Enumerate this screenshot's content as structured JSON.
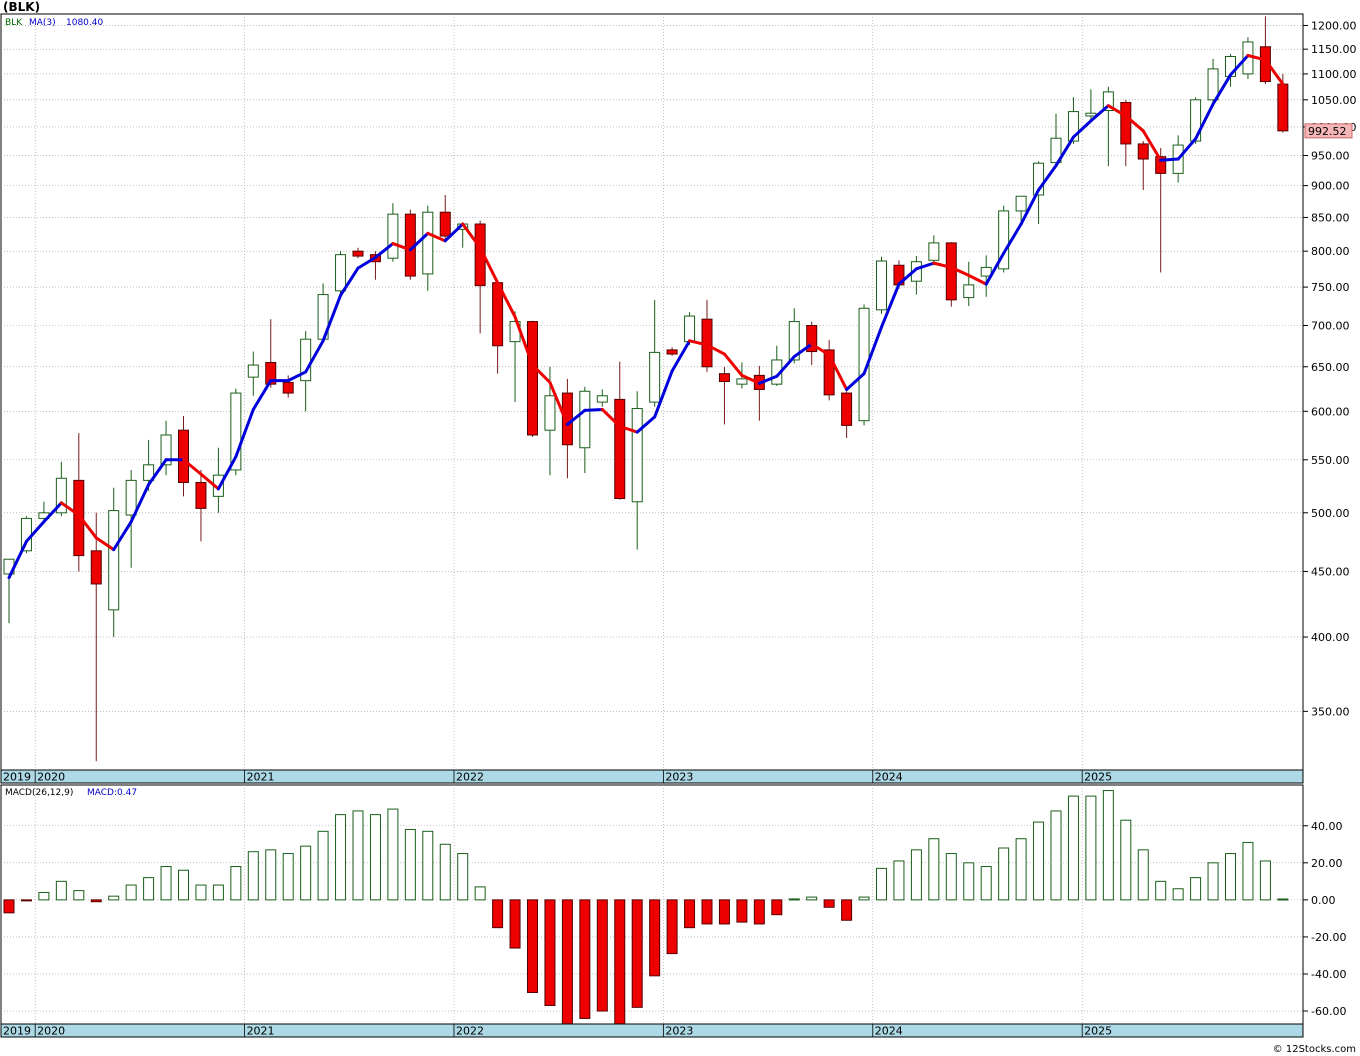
{
  "symbol_label": "(BLK)",
  "credit": "© 12Stocks.com",
  "chart_data": [
    {
      "type": "candlestick",
      "legend": {
        "symbol": "BLK",
        "ma_label": "MA(3)",
        "ma_value": "1080.40"
      },
      "last_price_label": "992.52",
      "y_scale": "log",
      "ylim": [
        315,
        1225
      ],
      "y_ticks": [
        350,
        400,
        450,
        500,
        550,
        600,
        650,
        700,
        750,
        800,
        850,
        900,
        950,
        1000,
        1050,
        1100,
        1150,
        1200
      ],
      "y_tick_labels": [
        "350.00",
        "400.00",
        "450.00",
        "500.00",
        "550.00",
        "600.00",
        "650.00",
        "700.00",
        "750.00",
        "800.00",
        "850.00",
        "900.00",
        "950.00",
        "1000.00",
        "1050.00",
        "1100.00",
        "1150.00",
        "1200.00"
      ],
      "x_labels": [
        "2019",
        "2020",
        "2021",
        "2022",
        "2023",
        "2024",
        "2025"
      ],
      "x_label_months": [
        -1,
        0,
        12,
        24,
        36,
        48,
        60
      ],
      "grid": true,
      "candles": [
        {
          "m": -2,
          "o": 448,
          "h": 460,
          "l": 410,
          "c": 460
        },
        {
          "m": -1,
          "o": 467,
          "h": 497,
          "l": 465,
          "c": 495
        },
        {
          "m": 0,
          "o": 495,
          "h": 510,
          "l": 490,
          "c": 500
        },
        {
          "m": 1,
          "o": 500,
          "h": 548,
          "l": 497,
          "c": 532
        },
        {
          "m": 2,
          "o": 530,
          "h": 577,
          "l": 450,
          "c": 463
        },
        {
          "m": 3,
          "o": 467,
          "h": 500,
          "l": 320,
          "c": 440
        },
        {
          "m": 4,
          "o": 420,
          "h": 523,
          "l": 400,
          "c": 502
        },
        {
          "m": 5,
          "o": 498,
          "h": 540,
          "l": 453,
          "c": 530
        },
        {
          "m": 6,
          "o": 530,
          "h": 570,
          "l": 520,
          "c": 545
        },
        {
          "m": 7,
          "o": 545,
          "h": 590,
          "l": 535,
          "c": 575
        },
        {
          "m": 8,
          "o": 580,
          "h": 595,
          "l": 515,
          "c": 528
        },
        {
          "m": 9,
          "o": 528,
          "h": 540,
          "l": 475,
          "c": 504
        },
        {
          "m": 10,
          "o": 515,
          "h": 562,
          "l": 500,
          "c": 535
        },
        {
          "m": 11,
          "o": 540,
          "h": 625,
          "l": 535,
          "c": 620
        },
        {
          "m": 12,
          "o": 638,
          "h": 668,
          "l": 617,
          "c": 652
        },
        {
          "m": 13,
          "o": 655,
          "h": 708,
          "l": 626,
          "c": 630
        },
        {
          "m": 14,
          "o": 632,
          "h": 640,
          "l": 615,
          "c": 620
        },
        {
          "m": 15,
          "o": 634,
          "h": 693,
          "l": 600,
          "c": 683
        },
        {
          "m": 16,
          "o": 683,
          "h": 755,
          "l": 680,
          "c": 740
        },
        {
          "m": 17,
          "o": 745,
          "h": 800,
          "l": 735,
          "c": 795
        },
        {
          "m": 18,
          "o": 800,
          "h": 805,
          "l": 790,
          "c": 793
        },
        {
          "m": 19,
          "o": 795,
          "h": 800,
          "l": 760,
          "c": 785
        },
        {
          "m": 20,
          "o": 790,
          "h": 872,
          "l": 785,
          "c": 855
        },
        {
          "m": 21,
          "o": 855,
          "h": 862,
          "l": 760,
          "c": 765
        },
        {
          "m": 22,
          "o": 768,
          "h": 868,
          "l": 745,
          "c": 858
        },
        {
          "m": 23,
          "o": 858,
          "h": 885,
          "l": 815,
          "c": 822
        },
        {
          "m": 24,
          "o": 832,
          "h": 840,
          "l": 805,
          "c": 840
        },
        {
          "m": 25,
          "o": 840,
          "h": 845,
          "l": 690,
          "c": 752
        },
        {
          "m": 26,
          "o": 756,
          "h": 760,
          "l": 642,
          "c": 675
        },
        {
          "m": 27,
          "o": 680,
          "h": 718,
          "l": 610,
          "c": 705
        },
        {
          "m": 28,
          "o": 705,
          "h": 706,
          "l": 573,
          "c": 575
        },
        {
          "m": 29,
          "o": 580,
          "h": 650,
          "l": 535,
          "c": 617
        },
        {
          "m": 30,
          "o": 620,
          "h": 636,
          "l": 532,
          "c": 565
        },
        {
          "m": 31,
          "o": 562,
          "h": 627,
          "l": 537,
          "c": 622
        },
        {
          "m": 32,
          "o": 610,
          "h": 624,
          "l": 605,
          "c": 617
        },
        {
          "m": 33,
          "o": 613,
          "h": 656,
          "l": 512,
          "c": 513
        },
        {
          "m": 34,
          "o": 510,
          "h": 622,
          "l": 468,
          "c": 603
        },
        {
          "m": 35,
          "o": 610,
          "h": 733,
          "l": 605,
          "c": 667
        },
        {
          "m": 36,
          "o": 670,
          "h": 673,
          "l": 663,
          "c": 665
        },
        {
          "m": 37,
          "o": 680,
          "h": 717,
          "l": 676,
          "c": 712
        },
        {
          "m": 38,
          "o": 708,
          "h": 733,
          "l": 644,
          "c": 650
        },
        {
          "m": 39,
          "o": 642,
          "h": 650,
          "l": 586,
          "c": 633
        },
        {
          "m": 40,
          "o": 630,
          "h": 655,
          "l": 625,
          "c": 636
        },
        {
          "m": 41,
          "o": 640,
          "h": 651,
          "l": 590,
          "c": 624
        },
        {
          "m": 42,
          "o": 630,
          "h": 675,
          "l": 628,
          "c": 658
        },
        {
          "m": 43,
          "o": 658,
          "h": 722,
          "l": 654,
          "c": 705
        },
        {
          "m": 44,
          "o": 700,
          "h": 705,
          "l": 652,
          "c": 668
        },
        {
          "m": 45,
          "o": 670,
          "h": 682,
          "l": 612,
          "c": 618
        },
        {
          "m": 46,
          "o": 620,
          "h": 622,
          "l": 572,
          "c": 585
        },
        {
          "m": 47,
          "o": 590,
          "h": 727,
          "l": 585,
          "c": 722
        },
        {
          "m": 48,
          "o": 720,
          "h": 792,
          "l": 715,
          "c": 786
        },
        {
          "m": 49,
          "o": 780,
          "h": 787,
          "l": 748,
          "c": 753
        },
        {
          "m": 50,
          "o": 758,
          "h": 793,
          "l": 740,
          "c": 785
        },
        {
          "m": 51,
          "o": 787,
          "h": 823,
          "l": 780,
          "c": 812
        },
        {
          "m": 52,
          "o": 812,
          "h": 813,
          "l": 724,
          "c": 733
        },
        {
          "m": 53,
          "o": 736,
          "h": 785,
          "l": 725,
          "c": 753
        },
        {
          "m": 54,
          "o": 765,
          "h": 794,
          "l": 737,
          "c": 777
        },
        {
          "m": 55,
          "o": 775,
          "h": 868,
          "l": 770,
          "c": 860
        },
        {
          "m": 56,
          "o": 860,
          "h": 880,
          "l": 844,
          "c": 883
        },
        {
          "m": 57,
          "o": 885,
          "h": 940,
          "l": 840,
          "c": 937
        },
        {
          "m": 58,
          "o": 938,
          "h": 1024,
          "l": 935,
          "c": 980
        },
        {
          "m": 59,
          "o": 975,
          "h": 1055,
          "l": 970,
          "c": 1028
        },
        {
          "m": 60,
          "o": 1020,
          "h": 1070,
          "l": 1010,
          "c": 1025
        },
        {
          "m": 61,
          "o": 1030,
          "h": 1075,
          "l": 932,
          "c": 1065
        },
        {
          "m": 62,
          "o": 1045,
          "h": 1050,
          "l": 932,
          "c": 970
        },
        {
          "m": 63,
          "o": 970,
          "h": 975,
          "l": 893,
          "c": 944
        },
        {
          "m": 64,
          "o": 948,
          "h": 963,
          "l": 770,
          "c": 920
        },
        {
          "m": 65,
          "o": 920,
          "h": 985,
          "l": 905,
          "c": 968
        },
        {
          "m": 66,
          "o": 975,
          "h": 1055,
          "l": 970,
          "c": 1050
        },
        {
          "m": 67,
          "o": 1050,
          "h": 1130,
          "l": 1040,
          "c": 1110
        },
        {
          "m": 68,
          "o": 1095,
          "h": 1140,
          "l": 1075,
          "c": 1135
        },
        {
          "m": 69,
          "o": 1100,
          "h": 1175,
          "l": 1090,
          "c": 1165
        },
        {
          "m": 70,
          "o": 1155,
          "h": 1220,
          "l": 1080,
          "c": 1085
        },
        {
          "m": 71,
          "o": 1080,
          "h": 1100,
          "l": 990,
          "c": 993
        }
      ],
      "ma3": [
        {
          "m": -2,
          "v": 445
        },
        {
          "m": -1,
          "v": 475
        },
        {
          "m": 0,
          "v": 492
        },
        {
          "m": 1,
          "v": 509
        },
        {
          "m": 2,
          "v": 498
        },
        {
          "m": 3,
          "v": 478
        },
        {
          "m": 4,
          "v": 468
        },
        {
          "m": 5,
          "v": 492
        },
        {
          "m": 6,
          "v": 526
        },
        {
          "m": 7,
          "v": 550
        },
        {
          "m": 8,
          "v": 550
        },
        {
          "m": 9,
          "v": 536
        },
        {
          "m": 10,
          "v": 522
        },
        {
          "m": 11,
          "v": 553
        },
        {
          "m": 12,
          "v": 602
        },
        {
          "m": 13,
          "v": 634
        },
        {
          "m": 14,
          "v": 634
        },
        {
          "m": 15,
          "v": 644
        },
        {
          "m": 16,
          "v": 681
        },
        {
          "m": 17,
          "v": 739
        },
        {
          "m": 18,
          "v": 776
        },
        {
          "m": 19,
          "v": 791
        },
        {
          "m": 20,
          "v": 811
        },
        {
          "m": 21,
          "v": 802
        },
        {
          "m": 22,
          "v": 826
        },
        {
          "m": 23,
          "v": 815
        },
        {
          "m": 24,
          "v": 840
        },
        {
          "m": 25,
          "v": 805
        },
        {
          "m": 26,
          "v": 756
        },
        {
          "m": 27,
          "v": 711
        },
        {
          "m": 28,
          "v": 652
        },
        {
          "m": 29,
          "v": 632
        },
        {
          "m": 30,
          "v": 586
        },
        {
          "m": 31,
          "v": 601
        },
        {
          "m": 32,
          "v": 602
        },
        {
          "m": 33,
          "v": 584
        },
        {
          "m": 34,
          "v": 578
        },
        {
          "m": 35,
          "v": 594
        },
        {
          "m": 36,
          "v": 645
        },
        {
          "m": 37,
          "v": 681
        },
        {
          "m": 38,
          "v": 676
        },
        {
          "m": 39,
          "v": 665
        },
        {
          "m": 40,
          "v": 640
        },
        {
          "m": 41,
          "v": 631
        },
        {
          "m": 42,
          "v": 639
        },
        {
          "m": 43,
          "v": 662
        },
        {
          "m": 44,
          "v": 677
        },
        {
          "m": 45,
          "v": 664
        },
        {
          "m": 46,
          "v": 624
        },
        {
          "m": 47,
          "v": 642
        },
        {
          "m": 48,
          "v": 698
        },
        {
          "m": 49,
          "v": 754
        },
        {
          "m": 50,
          "v": 775
        },
        {
          "m": 51,
          "v": 783
        },
        {
          "m": 52,
          "v": 777
        },
        {
          "m": 53,
          "v": 766
        },
        {
          "m": 54,
          "v": 754
        },
        {
          "m": 55,
          "v": 797
        },
        {
          "m": 56,
          "v": 840
        },
        {
          "m": 57,
          "v": 893
        },
        {
          "m": 58,
          "v": 933
        },
        {
          "m": 59,
          "v": 982
        },
        {
          "m": 60,
          "v": 1011
        },
        {
          "m": 61,
          "v": 1039
        },
        {
          "m": 62,
          "v": 1020
        },
        {
          "m": 63,
          "v": 993
        },
        {
          "m": 64,
          "v": 942
        },
        {
          "m": 65,
          "v": 944
        },
        {
          "m": 66,
          "v": 979
        },
        {
          "m": 67,
          "v": 1042
        },
        {
          "m": 68,
          "v": 1098
        },
        {
          "m": 69,
          "v": 1137
        },
        {
          "m": 70,
          "v": 1128
        },
        {
          "m": 71,
          "v": 1080
        }
      ]
    },
    {
      "type": "bar",
      "legend": {
        "indicator": "MACD(26,12,9)",
        "value_label": "MACD:0.47"
      },
      "ylim": [
        -67,
        62
      ],
      "y_ticks": [
        -60,
        -40,
        -20,
        0,
        20,
        40
      ],
      "y_tick_labels": [
        "-60.00",
        "-40.00",
        "-20.00",
        "0.00",
        "20.00",
        "40.00"
      ],
      "x_labels": [
        "2019",
        "2020",
        "2021",
        "2022",
        "2023",
        "2024",
        "2025"
      ],
      "x_label_months": [
        -1,
        0,
        12,
        24,
        36,
        48,
        60
      ],
      "values": [
        {
          "m": -2,
          "v": -7
        },
        {
          "m": -1,
          "v": -0.5
        },
        {
          "m": 0,
          "v": 4
        },
        {
          "m": 1,
          "v": 10
        },
        {
          "m": 2,
          "v": 5
        },
        {
          "m": 3,
          "v": -1
        },
        {
          "m": 4,
          "v": 2
        },
        {
          "m": 5,
          "v": 8
        },
        {
          "m": 6,
          "v": 12
        },
        {
          "m": 7,
          "v": 18
        },
        {
          "m": 8,
          "v": 16
        },
        {
          "m": 9,
          "v": 8
        },
        {
          "m": 10,
          "v": 8
        },
        {
          "m": 11,
          "v": 18
        },
        {
          "m": 12,
          "v": 26
        },
        {
          "m": 13,
          "v": 27
        },
        {
          "m": 14,
          "v": 25
        },
        {
          "m": 15,
          "v": 29
        },
        {
          "m": 16,
          "v": 37
        },
        {
          "m": 17,
          "v": 46
        },
        {
          "m": 18,
          "v": 48
        },
        {
          "m": 19,
          "v": 46
        },
        {
          "m": 20,
          "v": 49
        },
        {
          "m": 21,
          "v": 38
        },
        {
          "m": 22,
          "v": 37
        },
        {
          "m": 23,
          "v": 30
        },
        {
          "m": 24,
          "v": 25
        },
        {
          "m": 25,
          "v": 7
        },
        {
          "m": 26,
          "v": -15
        },
        {
          "m": 27,
          "v": -26
        },
        {
          "m": 28,
          "v": -50
        },
        {
          "m": 29,
          "v": -57
        },
        {
          "m": 30,
          "v": -67
        },
        {
          "m": 31,
          "v": -64
        },
        {
          "m": 32,
          "v": -60
        },
        {
          "m": 33,
          "v": -67
        },
        {
          "m": 34,
          "v": -58
        },
        {
          "m": 35,
          "v": -41
        },
        {
          "m": 36,
          "v": -29
        },
        {
          "m": 37,
          "v": -15
        },
        {
          "m": 38,
          "v": -13
        },
        {
          "m": 39,
          "v": -13
        },
        {
          "m": 40,
          "v": -12
        },
        {
          "m": 41,
          "v": -13
        },
        {
          "m": 42,
          "v": -8
        },
        {
          "m": 43,
          "v": 0.5
        },
        {
          "m": 44,
          "v": 1.5
        },
        {
          "m": 45,
          "v": -4
        },
        {
          "m": 46,
          "v": -11
        },
        {
          "m": 47,
          "v": 1.5
        },
        {
          "m": 48,
          "v": 17
        },
        {
          "m": 49,
          "v": 21
        },
        {
          "m": 50,
          "v": 27
        },
        {
          "m": 51,
          "v": 33
        },
        {
          "m": 52,
          "v": 25
        },
        {
          "m": 53,
          "v": 20
        },
        {
          "m": 54,
          "v": 18
        },
        {
          "m": 55,
          "v": 28
        },
        {
          "m": 56,
          "v": 33
        },
        {
          "m": 57,
          "v": 42
        },
        {
          "m": 58,
          "v": 48
        },
        {
          "m": 59,
          "v": 56
        },
        {
          "m": 60,
          "v": 56
        },
        {
          "m": 61,
          "v": 59
        },
        {
          "m": 62,
          "v": 43
        },
        {
          "m": 63,
          "v": 27
        },
        {
          "m": 64,
          "v": 10
        },
        {
          "m": 65,
          "v": 6
        },
        {
          "m": 66,
          "v": 12
        },
        {
          "m": 67,
          "v": 20
        },
        {
          "m": 68,
          "v": 25
        },
        {
          "m": 69,
          "v": 31
        },
        {
          "m": 70,
          "v": 21
        },
        {
          "m": 71,
          "v": 0.47
        }
      ]
    }
  ],
  "colors": {
    "up_candle_stroke": "#1a5e1a",
    "down_candle_fill": "#ee0000",
    "ma_up": "#0000dd",
    "ma_down": "#ee0000",
    "axis_band": "#add8e6",
    "grid": "#999999",
    "last_price_bg": "#f4b6b6"
  }
}
